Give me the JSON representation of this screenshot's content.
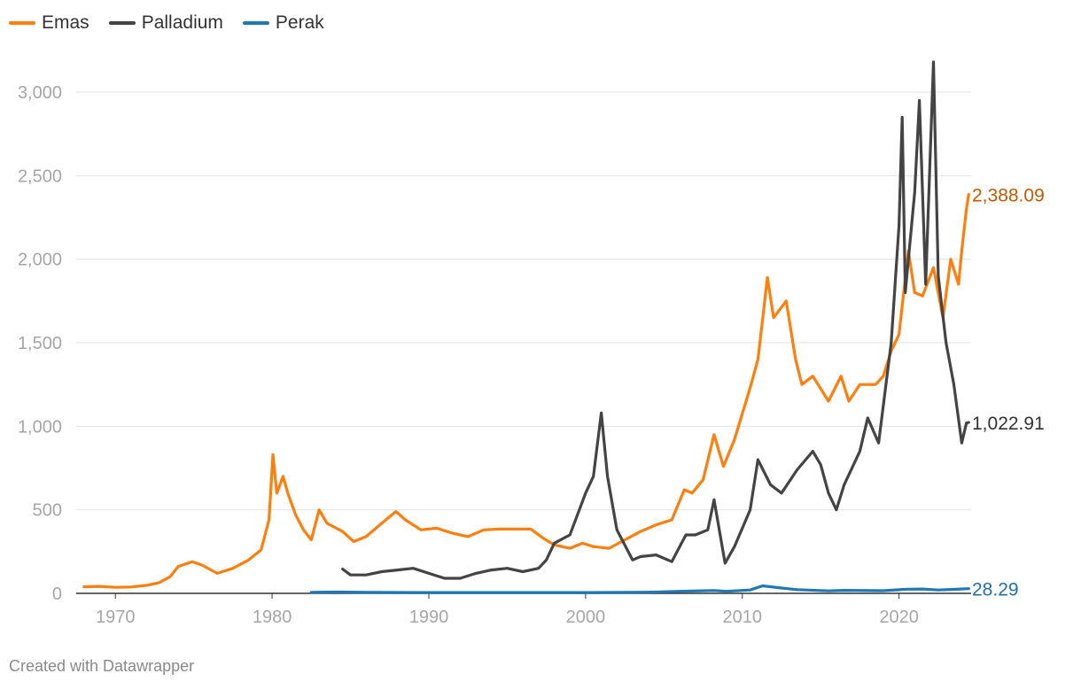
{
  "chart_data": {
    "type": "line",
    "title": "",
    "xlabel": "",
    "ylabel": "",
    "xlim": [
      1967.5,
      2024.6
    ],
    "ylim": [
      0,
      3000
    ],
    "x_ticks": [
      "1970",
      "1980",
      "1990",
      "2000",
      "2010",
      "2020"
    ],
    "y_ticks": [
      "0",
      "500",
      "1,000",
      "1,500",
      "2,000",
      "2,500",
      "3,000"
    ],
    "grid": true,
    "legend_position": "top-left",
    "series": [
      {
        "name": "Emas",
        "color": "#ff7f0e",
        "label_color": "#c35a07",
        "end_label": "2,388.09",
        "points": [
          [
            1968.0,
            39
          ],
          [
            1969.0,
            42
          ],
          [
            1970.0,
            36
          ],
          [
            1971.0,
            38
          ],
          [
            1972.0,
            48
          ],
          [
            1972.8,
            64
          ],
          [
            1973.5,
            100
          ],
          [
            1974.0,
            160
          ],
          [
            1974.9,
            190
          ],
          [
            1975.5,
            170
          ],
          [
            1976.5,
            120
          ],
          [
            1977.5,
            150
          ],
          [
            1978.5,
            200
          ],
          [
            1979.3,
            260
          ],
          [
            1979.8,
            440
          ],
          [
            1980.05,
            830
          ],
          [
            1980.3,
            600
          ],
          [
            1980.7,
            700
          ],
          [
            1981.0,
            600
          ],
          [
            1981.5,
            470
          ],
          [
            1982.0,
            380
          ],
          [
            1982.5,
            320
          ],
          [
            1983.0,
            500
          ],
          [
            1983.5,
            420
          ],
          [
            1984.5,
            370
          ],
          [
            1985.2,
            310
          ],
          [
            1986.0,
            340
          ],
          [
            1987.0,
            420
          ],
          [
            1987.9,
            490
          ],
          [
            1988.5,
            440
          ],
          [
            1989.5,
            380
          ],
          [
            1990.5,
            390
          ],
          [
            1991.5,
            360
          ],
          [
            1992.5,
            340
          ],
          [
            1993.5,
            380
          ],
          [
            1994.5,
            385
          ],
          [
            1995.5,
            385
          ],
          [
            1996.5,
            385
          ],
          [
            1997.3,
            330
          ],
          [
            1998.0,
            290
          ],
          [
            1999.0,
            270
          ],
          [
            1999.8,
            300
          ],
          [
            2000.5,
            280
          ],
          [
            2001.5,
            270
          ],
          [
            2002.5,
            320
          ],
          [
            2003.5,
            370
          ],
          [
            2004.5,
            410
          ],
          [
            2005.5,
            440
          ],
          [
            2006.3,
            620
          ],
          [
            2006.8,
            600
          ],
          [
            2007.5,
            680
          ],
          [
            2008.2,
            950
          ],
          [
            2008.8,
            760
          ],
          [
            2009.5,
            920
          ],
          [
            2010.5,
            1230
          ],
          [
            2011.0,
            1400
          ],
          [
            2011.6,
            1890
          ],
          [
            2012.0,
            1650
          ],
          [
            2012.8,
            1750
          ],
          [
            2013.4,
            1400
          ],
          [
            2013.8,
            1250
          ],
          [
            2014.5,
            1300
          ],
          [
            2015.5,
            1150
          ],
          [
            2016.3,
            1300
          ],
          [
            2016.8,
            1150
          ],
          [
            2017.5,
            1250
          ],
          [
            2018.5,
            1250
          ],
          [
            2019.0,
            1300
          ],
          [
            2019.5,
            1450
          ],
          [
            2020.0,
            1550
          ],
          [
            2020.6,
            2050
          ],
          [
            2021.0,
            1800
          ],
          [
            2021.5,
            1780
          ],
          [
            2022.2,
            1950
          ],
          [
            2022.8,
            1650
          ],
          [
            2023.3,
            2000
          ],
          [
            2023.8,
            1850
          ],
          [
            2024.0,
            2050
          ],
          [
            2024.3,
            2300
          ],
          [
            2024.45,
            2388.09
          ]
        ]
      },
      {
        "name": "Palladium",
        "color": "#444444",
        "label_color": "#333333",
        "end_label": "1,022.91",
        "points": [
          [
            1984.5,
            145
          ],
          [
            1985.0,
            110
          ],
          [
            1986.0,
            110
          ],
          [
            1987.0,
            130
          ],
          [
            1988.0,
            140
          ],
          [
            1989.0,
            150
          ],
          [
            1990.0,
            120
          ],
          [
            1991.0,
            90
          ],
          [
            1992.0,
            90
          ],
          [
            1993.0,
            120
          ],
          [
            1994.0,
            140
          ],
          [
            1995.0,
            150
          ],
          [
            1996.0,
            130
          ],
          [
            1997.0,
            150
          ],
          [
            1997.5,
            200
          ],
          [
            1998.0,
            300
          ],
          [
            1999.0,
            350
          ],
          [
            2000.0,
            600
          ],
          [
            2000.5,
            700
          ],
          [
            2001.0,
            1080
          ],
          [
            2001.4,
            700
          ],
          [
            2002.0,
            380
          ],
          [
            2003.0,
            200
          ],
          [
            2003.5,
            220
          ],
          [
            2004.5,
            230
          ],
          [
            2005.5,
            190
          ],
          [
            2006.4,
            350
          ],
          [
            2007.0,
            350
          ],
          [
            2007.8,
            380
          ],
          [
            2008.2,
            560
          ],
          [
            2008.9,
            180
          ],
          [
            2009.5,
            280
          ],
          [
            2010.5,
            500
          ],
          [
            2011.0,
            800
          ],
          [
            2011.8,
            650
          ],
          [
            2012.5,
            600
          ],
          [
            2013.5,
            740
          ],
          [
            2014.5,
            850
          ],
          [
            2015.0,
            770
          ],
          [
            2015.5,
            600
          ],
          [
            2016.0,
            500
          ],
          [
            2016.5,
            650
          ],
          [
            2017.5,
            850
          ],
          [
            2018.0,
            1050
          ],
          [
            2018.7,
            900
          ],
          [
            2019.5,
            1500
          ],
          [
            2020.0,
            2200
          ],
          [
            2020.2,
            2850
          ],
          [
            2020.4,
            1800
          ],
          [
            2021.0,
            2400
          ],
          [
            2021.3,
            2950
          ],
          [
            2021.7,
            1850
          ],
          [
            2022.2,
            3180
          ],
          [
            2022.5,
            1900
          ],
          [
            2023.0,
            1500
          ],
          [
            2023.5,
            1250
          ],
          [
            2024.0,
            900
          ],
          [
            2024.3,
            1020
          ],
          [
            2024.45,
            1022.91
          ]
        ]
      },
      {
        "name": "Perak",
        "color": "#1f77b4",
        "label_color": "#1f6fae",
        "end_label": "28.29",
        "points": [
          [
            1982.5,
            6
          ],
          [
            1984.0,
            8
          ],
          [
            1986.0,
            6
          ],
          [
            1990.0,
            5
          ],
          [
            1995.0,
            5
          ],
          [
            2000.0,
            5
          ],
          [
            2004.0,
            7
          ],
          [
            2006.5,
            13
          ],
          [
            2008.2,
            17
          ],
          [
            2009.0,
            12
          ],
          [
            2010.5,
            20
          ],
          [
            2011.3,
            45
          ],
          [
            2012.5,
            32
          ],
          [
            2013.5,
            22
          ],
          [
            2015.5,
            15
          ],
          [
            2016.5,
            18
          ],
          [
            2019.0,
            16
          ],
          [
            2020.5,
            25
          ],
          [
            2021.5,
            26
          ],
          [
            2022.5,
            20
          ],
          [
            2023.5,
            24
          ],
          [
            2024.45,
            28.29
          ]
        ]
      }
    ]
  },
  "footer": {
    "credit": "Created with Datawrapper"
  }
}
